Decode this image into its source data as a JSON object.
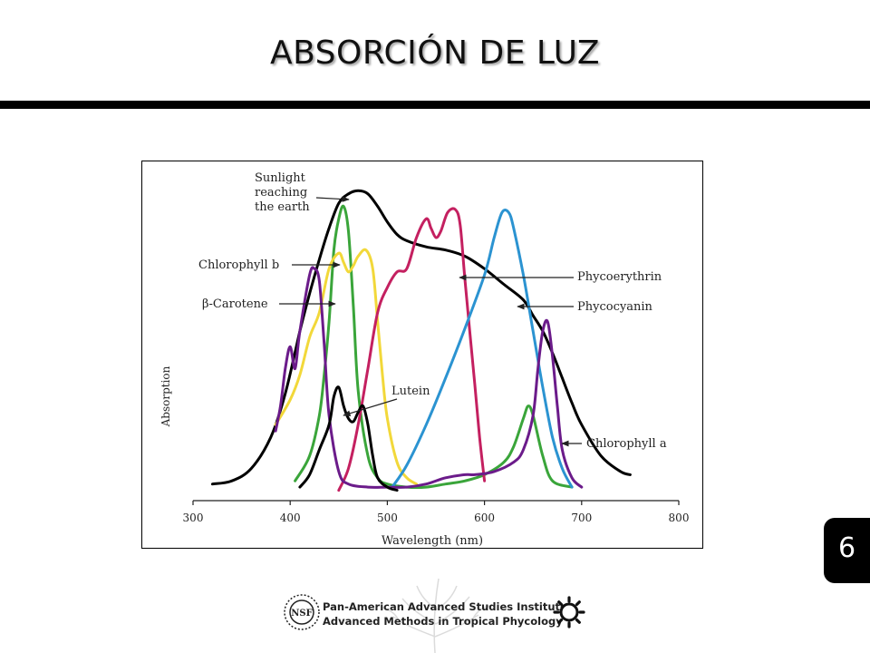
{
  "slide": {
    "title": "ABSORCIÓN DE LUZ",
    "page_number": "6"
  },
  "footer": {
    "line1": "Pan-American Advanced Studies Institute",
    "line2": "Advanced Methods in Tropical Phycology",
    "logo_left_text": "NSF"
  },
  "chart_data": {
    "type": "line",
    "title": "",
    "xlabel": "Wavelength (nm)",
    "ylabel": "Absorption",
    "xlim": [
      300,
      800
    ],
    "x_ticks": [
      "300",
      "400",
      "500",
      "600",
      "700",
      "800"
    ],
    "ylim": [
      0,
      1
    ],
    "grid": false,
    "legend": "none",
    "series": [
      {
        "name": "Sunlight reaching the earth",
        "color": "#000000",
        "width": 3,
        "points": [
          [
            320,
            0.03
          ],
          [
            340,
            0.04
          ],
          [
            360,
            0.08
          ],
          [
            380,
            0.18
          ],
          [
            395,
            0.32
          ],
          [
            410,
            0.52
          ],
          [
            420,
            0.64
          ],
          [
            430,
            0.75
          ],
          [
            440,
            0.85
          ],
          [
            450,
            0.93
          ],
          [
            460,
            0.96
          ],
          [
            470,
            0.97
          ],
          [
            480,
            0.96
          ],
          [
            490,
            0.92
          ],
          [
            500,
            0.87
          ],
          [
            510,
            0.83
          ],
          [
            520,
            0.81
          ],
          [
            540,
            0.79
          ],
          [
            560,
            0.78
          ],
          [
            580,
            0.76
          ],
          [
            600,
            0.72
          ],
          [
            620,
            0.67
          ],
          [
            640,
            0.62
          ],
          [
            650,
            0.57
          ],
          [
            660,
            0.52
          ],
          [
            670,
            0.45
          ],
          [
            680,
            0.37
          ],
          [
            690,
            0.29
          ],
          [
            700,
            0.22
          ],
          [
            720,
            0.12
          ],
          [
            740,
            0.07
          ],
          [
            750,
            0.06
          ]
        ]
      },
      {
        "name": "Chlorophyll b",
        "color": "#3aa53a",
        "width": 3,
        "points": [
          [
            405,
            0.04
          ],
          [
            420,
            0.12
          ],
          [
            430,
            0.25
          ],
          [
            435,
            0.38
          ],
          [
            440,
            0.55
          ],
          [
            445,
            0.78
          ],
          [
            450,
            0.88
          ],
          [
            455,
            0.92
          ],
          [
            460,
            0.84
          ],
          [
            465,
            0.6
          ],
          [
            470,
            0.33
          ],
          [
            480,
            0.12
          ],
          [
            490,
            0.05
          ],
          [
            500,
            0.03
          ],
          [
            520,
            0.02
          ],
          [
            540,
            0.02
          ],
          [
            560,
            0.03
          ],
          [
            580,
            0.04
          ],
          [
            600,
            0.06
          ],
          [
            620,
            0.1
          ],
          [
            630,
            0.15
          ],
          [
            640,
            0.24
          ],
          [
            645,
            0.28
          ],
          [
            650,
            0.25
          ],
          [
            660,
            0.12
          ],
          [
            670,
            0.04
          ],
          [
            690,
            0.02
          ]
        ]
      },
      {
        "name": "β-Carotene",
        "color": "#f2d83a",
        "width": 3,
        "points": [
          [
            385,
            0.22
          ],
          [
            400,
            0.3
          ],
          [
            410,
            0.38
          ],
          [
            420,
            0.5
          ],
          [
            430,
            0.58
          ],
          [
            440,
            0.72
          ],
          [
            450,
            0.77
          ],
          [
            455,
            0.74
          ],
          [
            460,
            0.71
          ],
          [
            465,
            0.73
          ],
          [
            470,
            0.76
          ],
          [
            478,
            0.78
          ],
          [
            485,
            0.72
          ],
          [
            490,
            0.55
          ],
          [
            495,
            0.38
          ],
          [
            500,
            0.24
          ],
          [
            510,
            0.1
          ],
          [
            520,
            0.05
          ],
          [
            530,
            0.03
          ]
        ]
      },
      {
        "name": "Phycoerythrin",
        "color": "#c42060",
        "width": 3,
        "points": [
          [
            450,
            0.01
          ],
          [
            460,
            0.08
          ],
          [
            470,
            0.22
          ],
          [
            480,
            0.4
          ],
          [
            490,
            0.58
          ],
          [
            500,
            0.66
          ],
          [
            510,
            0.71
          ],
          [
            520,
            0.72
          ],
          [
            530,
            0.82
          ],
          [
            540,
            0.88
          ],
          [
            545,
            0.85
          ],
          [
            550,
            0.82
          ],
          [
            555,
            0.84
          ],
          [
            562,
            0.9
          ],
          [
            570,
            0.91
          ],
          [
            575,
            0.86
          ],
          [
            580,
            0.68
          ],
          [
            590,
            0.35
          ],
          [
            595,
            0.18
          ],
          [
            600,
            0.04
          ]
        ]
      },
      {
        "name": "Phycocyanin",
        "color": "#2b93d1",
        "width": 3,
        "points": [
          [
            505,
            0.02
          ],
          [
            520,
            0.09
          ],
          [
            540,
            0.22
          ],
          [
            560,
            0.37
          ],
          [
            580,
            0.53
          ],
          [
            600,
            0.7
          ],
          [
            610,
            0.82
          ],
          [
            618,
            0.9
          ],
          [
            625,
            0.9
          ],
          [
            630,
            0.85
          ],
          [
            640,
            0.7
          ],
          [
            650,
            0.52
          ],
          [
            660,
            0.34
          ],
          [
            670,
            0.18
          ],
          [
            680,
            0.08
          ],
          [
            690,
            0.02
          ]
        ]
      },
      {
        "name": "Chlorophyll a",
        "color": "#6b1b8a",
        "width": 3,
        "points": [
          [
            385,
            0.2
          ],
          [
            390,
            0.28
          ],
          [
            395,
            0.4
          ],
          [
            400,
            0.47
          ],
          [
            405,
            0.4
          ],
          [
            410,
            0.52
          ],
          [
            420,
            0.7
          ],
          [
            425,
            0.72
          ],
          [
            430,
            0.68
          ],
          [
            435,
            0.48
          ],
          [
            440,
            0.25
          ],
          [
            450,
            0.07
          ],
          [
            460,
            0.03
          ],
          [
            480,
            0.02
          ],
          [
            500,
            0.02
          ],
          [
            520,
            0.02
          ],
          [
            540,
            0.03
          ],
          [
            560,
            0.05
          ],
          [
            580,
            0.06
          ],
          [
            590,
            0.06
          ],
          [
            610,
            0.07
          ],
          [
            630,
            0.1
          ],
          [
            640,
            0.14
          ],
          [
            650,
            0.25
          ],
          [
            655,
            0.4
          ],
          [
            660,
            0.52
          ],
          [
            665,
            0.55
          ],
          [
            670,
            0.44
          ],
          [
            675,
            0.28
          ],
          [
            680,
            0.14
          ],
          [
            690,
            0.05
          ],
          [
            700,
            0.02
          ]
        ]
      },
      {
        "name": "Lutein",
        "color": "#000000",
        "width": 3,
        "points": [
          [
            410,
            0.02
          ],
          [
            420,
            0.06
          ],
          [
            430,
            0.14
          ],
          [
            440,
            0.22
          ],
          [
            445,
            0.31
          ],
          [
            450,
            0.34
          ],
          [
            455,
            0.28
          ],
          [
            460,
            0.24
          ],
          [
            465,
            0.23
          ],
          [
            470,
            0.26
          ],
          [
            475,
            0.28
          ],
          [
            480,
            0.22
          ],
          [
            485,
            0.12
          ],
          [
            490,
            0.05
          ],
          [
            500,
            0.02
          ],
          [
            510,
            0.01
          ]
        ]
      }
    ],
    "annotations": [
      {
        "lines": [
          "Sunlight",
          "reaching",
          "the earth"
        ]
      },
      {
        "lines": [
          "Chlorophyll b"
        ]
      },
      {
        "lines": [
          "β-Carotene"
        ]
      },
      {
        "lines": [
          "Lutein"
        ]
      },
      {
        "lines": [
          "Phycoerythrin"
        ]
      },
      {
        "lines": [
          "Phycocyanin"
        ]
      },
      {
        "lines": [
          "Chlorophyll a"
        ]
      }
    ]
  }
}
